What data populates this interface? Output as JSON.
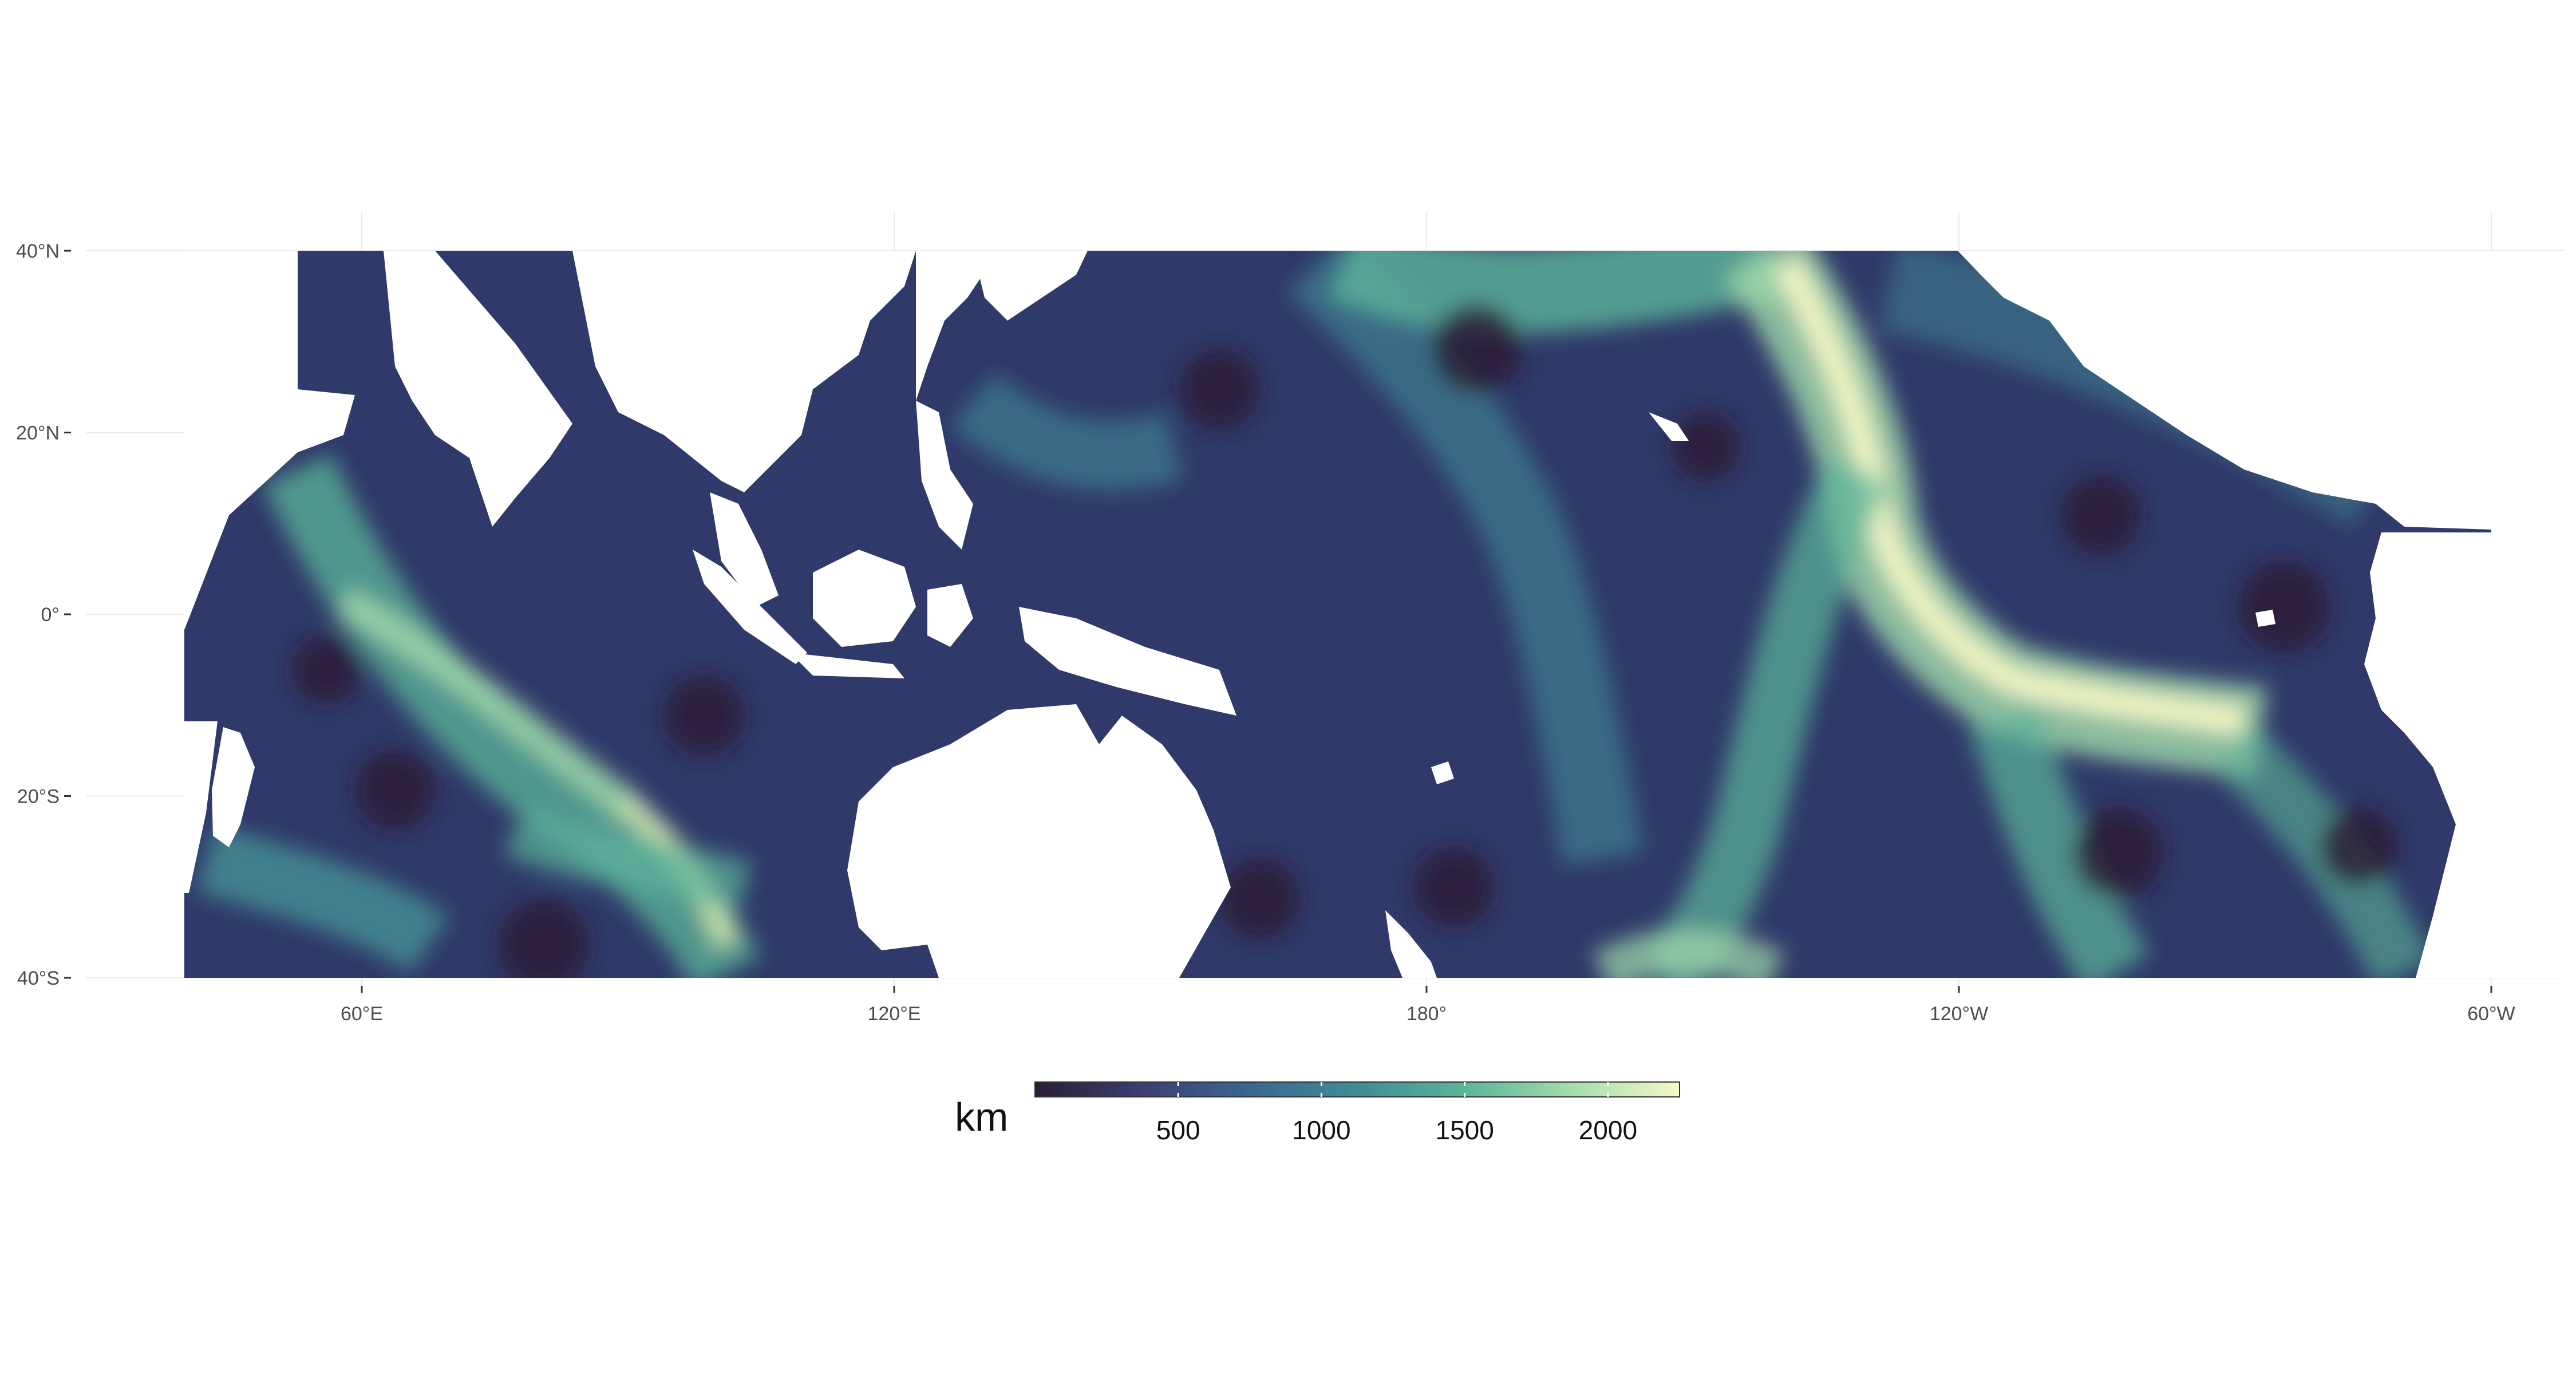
{
  "map": {
    "legend": {
      "title": "km",
      "ticks": [
        500,
        1000,
        1500,
        2000
      ],
      "range": [
        0,
        2250
      ],
      "colormap": [
        "#2b1d35",
        "#3b3f74",
        "#3a6690",
        "#3f8c96",
        "#5cb59a",
        "#a3dcab",
        "#f5f8c6"
      ]
    },
    "axes": {
      "x_ticks": [
        {
          "lon": 60,
          "label": "60°E"
        },
        {
          "lon": 120,
          "label": "120°E"
        },
        {
          "lon": 180,
          "label": "180°"
        },
        {
          "lon": 240,
          "label": "120°W"
        },
        {
          "lon": 300,
          "label": "60°W"
        }
      ],
      "y_ticks": [
        {
          "lat": 40,
          "label": "40°N"
        },
        {
          "lat": 20,
          "label": "20°N"
        },
        {
          "lat": 0,
          "label": "0°"
        },
        {
          "lat": -20,
          "label": "20°S"
        },
        {
          "lat": -40,
          "label": "40°S"
        }
      ],
      "lon_range": [
        40,
        300
      ],
      "lat_range": [
        -40,
        40
      ],
      "grid": true
    },
    "land_color": "#ffffff",
    "gridline_color": "#ebebeb"
  }
}
